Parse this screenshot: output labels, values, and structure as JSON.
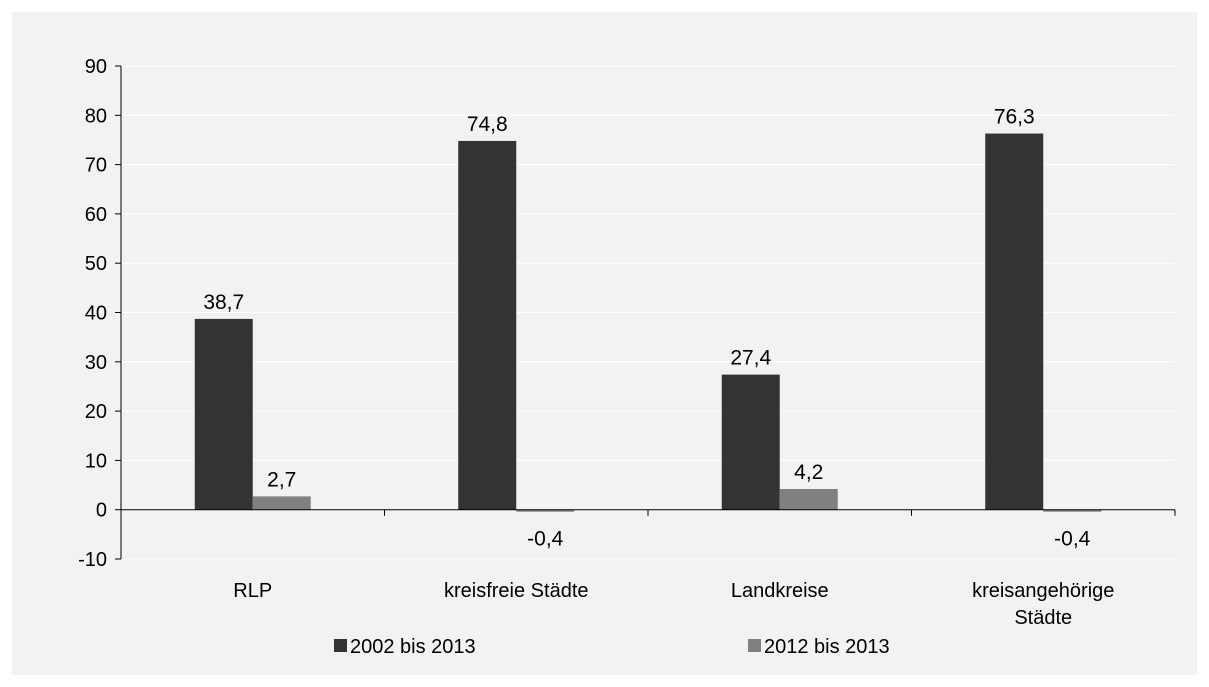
{
  "chart_data": {
    "type": "bar",
    "categories": [
      [
        "RLP"
      ],
      [
        "kreisfreie Städte"
      ],
      [
        "Landkreise"
      ],
      [
        "kreisangehörige",
        "Städte"
      ]
    ],
    "series": [
      {
        "name": "2002 bis 2013",
        "values": [
          38.7,
          74.8,
          27.4,
          76.3
        ],
        "labels": [
          "38,7",
          "74,8",
          "27,4",
          "76,3"
        ],
        "color": "#333333"
      },
      {
        "name": "2012 bis 2013",
        "values": [
          2.7,
          -0.4,
          4.2,
          -0.4
        ],
        "labels": [
          "2,7",
          "-0,4",
          "4,2",
          "-0,4"
        ],
        "color": "#808080"
      }
    ],
    "yticks": [
      90,
      80,
      70,
      60,
      50,
      40,
      30,
      20,
      10,
      0,
      -10
    ],
    "ytick_labels": [
      "90",
      "80",
      "70",
      "60",
      "50",
      "40",
      "30",
      "20",
      "10",
      "0",
      "-10"
    ],
    "ylim": [
      -10,
      90
    ],
    "grid": true,
    "legend_position": "bottom"
  },
  "colors": {
    "background": "#f2f2f2",
    "gridline": "#ffffff",
    "axis": "#000000"
  }
}
